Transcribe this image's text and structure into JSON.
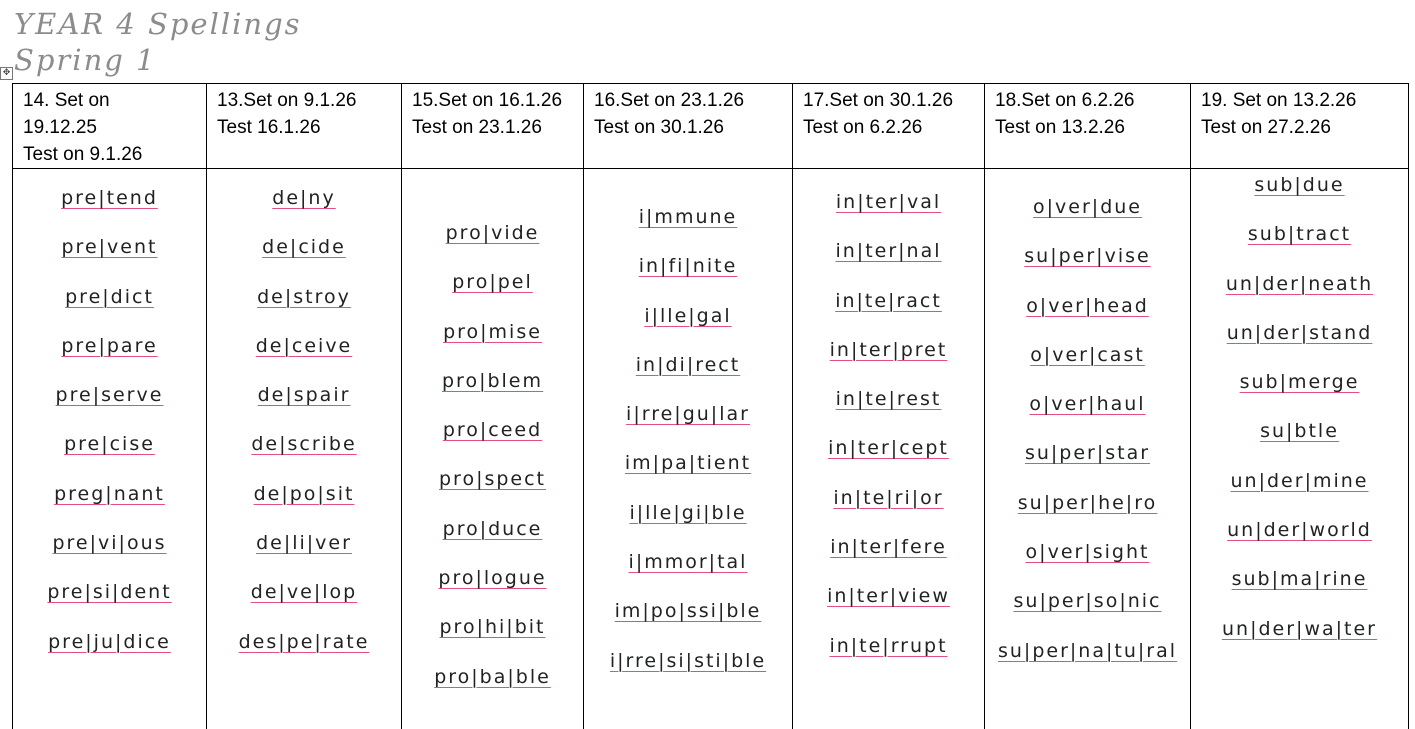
{
  "document": {
    "title_line1": "YEAR 4 Spellings",
    "title_line2": "Spring 1",
    "move_handle_glyph": "✥"
  },
  "columns": [
    {
      "header_line1": "14. Set on",
      "header_line2": "19.12.25",
      "header_line3": "Test on 9.1.26",
      "words": [
        "pre|tend",
        "pre|vent",
        "pre|dict",
        "pre|pare",
        "pre|serve",
        "pre|cise",
        "preg|nant",
        "pre|vi|ous",
        "pre|si|dent",
        "pre|ju|dice"
      ]
    },
    {
      "header_line1": "13.Set on 9.1.26",
      "header_line2": "Test 16.1.26",
      "header_line3": "",
      "words": [
        "de|ny",
        "de|cide",
        "de|stroy",
        "de|ceive",
        "de|spair",
        "de|scribe",
        "de|po|sit",
        "de|li|ver",
        "de|ve|lop",
        "des|pe|rate"
      ]
    },
    {
      "header_line1": "15.Set on 16.1.26",
      "header_line2": "Test on 23.1.26",
      "header_line3": "",
      "words": [
        "pro|vide",
        "pro|pel",
        "pro|mise",
        "pro|blem",
        "pro|ceed",
        "pro|spect",
        "pro|duce",
        "pro|logue",
        "pro|hi|bit",
        "pro|ba|ble"
      ]
    },
    {
      "header_line1": "16.Set on 23.1.26",
      "header_line2": "Test on 30.1.26",
      "header_line3": "",
      "words": [
        "i|mmune",
        "in|fi|nite",
        "i|lle|gal",
        "in|di|rect",
        "i|rre|gu|lar",
        "im|pa|tient",
        "i|lle|gi|ble",
        "i|mmor|tal",
        "im|po|ssi|ble",
        "i|rre|si|sti|ble"
      ]
    },
    {
      "header_line1": "17.Set on 30.1.26",
      "header_line2": "Test on 6.2.26",
      "header_line3": "",
      "words": [
        "in|ter|val",
        "in|ter|nal",
        "in|te|ract",
        "in|ter|pret",
        "in|te|rest",
        "in|ter|cept",
        "in|te|ri|or",
        "in|ter|fere",
        "in|ter|view",
        "in|te|rrupt"
      ]
    },
    {
      "header_line1": "18.Set on 6.2.26",
      "header_line2": "Test on 13.2.26",
      "header_line3": "",
      "words": [
        "o|ver|due",
        "su|per|vise",
        "o|ver|head",
        "o|ver|cast",
        "o|ver|haul",
        "su|per|star",
        "su|per|he|ro",
        "o|ver|sight",
        "su|per|so|nic",
        "su|per|na|tu|ral"
      ]
    },
    {
      "header_line1": "19. Set on 13.2.26",
      "header_line2": "Test on 27.2.26",
      "header_line3": "",
      "words": [
        "sub|due",
        "sub|tract",
        "un|der|neath",
        "un|der|stand",
        "sub|merge",
        "su|btle",
        "un|der|mine",
        "un|der|world",
        "sub|ma|rine",
        "un|der|wa|ter"
      ]
    }
  ]
}
